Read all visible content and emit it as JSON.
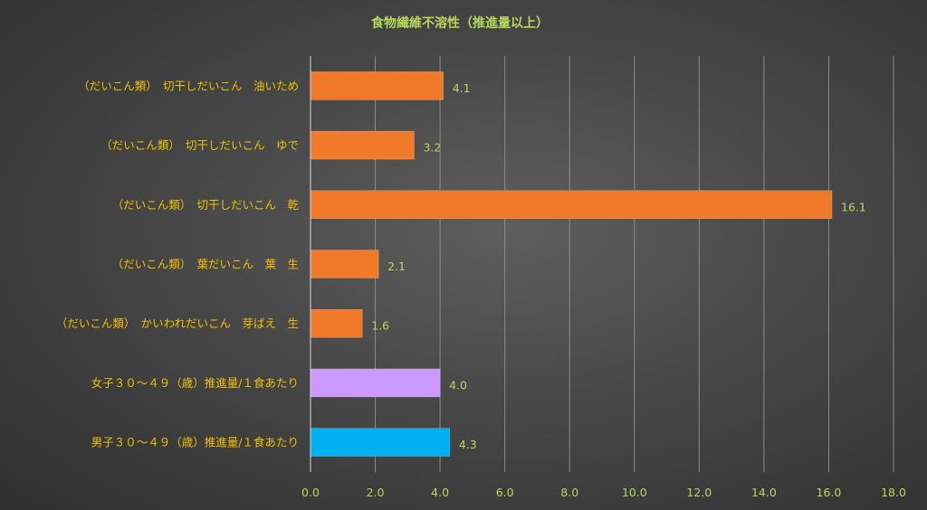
{
  "chart_data": {
    "type": "bar",
    "orientation": "horizontal",
    "title": "食物繊維不溶性（推進量以上）",
    "categories": [
      "（だいこん類）　切干しだいこん　油いため",
      "（だいこん類）　切干しだいこん　ゆで",
      "（だいこん類）　切干しだいこん　乾",
      "（だいこん類）　葉だいこん　葉　生",
      "（だいこん類）　かいわれだいこん　芽ばえ　生",
      "女子３０～４９（歳）推進量/１食あたり",
      "男子３０～４９（歳）推進量/１食あたり"
    ],
    "values": [
      4.1,
      3.2,
      16.1,
      2.1,
      1.6,
      4.0,
      4.3
    ],
    "value_labels": [
      "4.1",
      "3.2",
      "16.1",
      "2.1",
      "1.6",
      "4.0",
      "4.3"
    ],
    "colors": [
      "#f07a2a",
      "#f07a2a",
      "#f07a2a",
      "#f07a2a",
      "#f07a2a",
      "#cc99ff",
      "#00b0f0"
    ],
    "xlim": [
      0,
      18
    ],
    "xticks": [
      "0.0",
      "2.0",
      "4.0",
      "6.0",
      "8.0",
      "10.0",
      "12.0",
      "14.0",
      "16.0",
      "18.0"
    ],
    "grid": true,
    "legend": "none"
  }
}
